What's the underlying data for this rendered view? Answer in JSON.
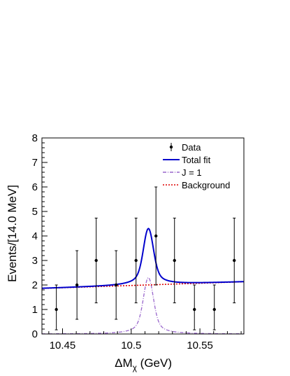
{
  "chart_data": {
    "type": "scatter",
    "title": "",
    "xlabel": "ΔM",
    "xlabel_subscript": "χ",
    "xlabel_unit": " (GeV)",
    "ylabel": "Events/[14.0 MeV]",
    "xlim": [
      10.435,
      10.582
    ],
    "ylim": [
      0,
      8
    ],
    "x_ticks": [
      10.45,
      10.5,
      10.55
    ],
    "x_tick_labels": [
      "10.45",
      "10.5",
      "10.55"
    ],
    "y_ticks": [
      0,
      1,
      2,
      3,
      4,
      5,
      6,
      7,
      8
    ],
    "y_tick_labels": [
      "0",
      "1",
      "2",
      "3",
      "4",
      "5",
      "6",
      "7",
      "8"
    ],
    "grid": false,
    "legend_position": "top-right",
    "legend": [
      {
        "label": "Data",
        "style": "marker",
        "color": "#000000"
      },
      {
        "label": "Total fit",
        "style": "solid",
        "color": "#0000cc"
      },
      {
        "label": "J = 1",
        "style": "dashdot",
        "color": "#9966cc"
      },
      {
        "label": "Background",
        "style": "dotted",
        "color": "#dd0000"
      }
    ],
    "data_points": [
      {
        "x": 10.4455,
        "y": 1,
        "err_low": 0.83,
        "err_high": 1.0
      },
      {
        "x": 10.4605,
        "y": 2,
        "err_low": 1.4,
        "err_high": 1.4
      },
      {
        "x": 10.4745,
        "y": 3,
        "err_low": 1.73,
        "err_high": 1.73
      },
      {
        "x": 10.489,
        "y": 2,
        "err_low": 1.4,
        "err_high": 1.4
      },
      {
        "x": 10.5035,
        "y": 3,
        "err_low": 1.73,
        "err_high": 1.73
      },
      {
        "x": 10.518,
        "y": 4,
        "err_low": 2.0,
        "err_high": 2.0
      },
      {
        "x": 10.5315,
        "y": 3,
        "err_low": 1.73,
        "err_high": 1.73
      },
      {
        "x": 10.546,
        "y": 1,
        "err_low": 0.83,
        "err_high": 1.0
      },
      {
        "x": 10.5605,
        "y": 1,
        "err_low": 0.83,
        "err_high": 1.0
      },
      {
        "x": 10.575,
        "y": 3,
        "err_low": 1.73,
        "err_high": 1.73
      }
    ],
    "background": {
      "y_at_xmin": 1.86,
      "y_at_xmax": 2.13
    },
    "signal_peak": {
      "mean": 10.5125,
      "sigma": 0.0034,
      "gamma": 0.0065,
      "amplitude": 2.3
    },
    "series": [
      {
        "name": "Total fit",
        "color": "#0000cc"
      },
      {
        "name": "J = 1",
        "color": "#9966cc"
      },
      {
        "name": "Background",
        "color": "#dd0000"
      }
    ]
  }
}
